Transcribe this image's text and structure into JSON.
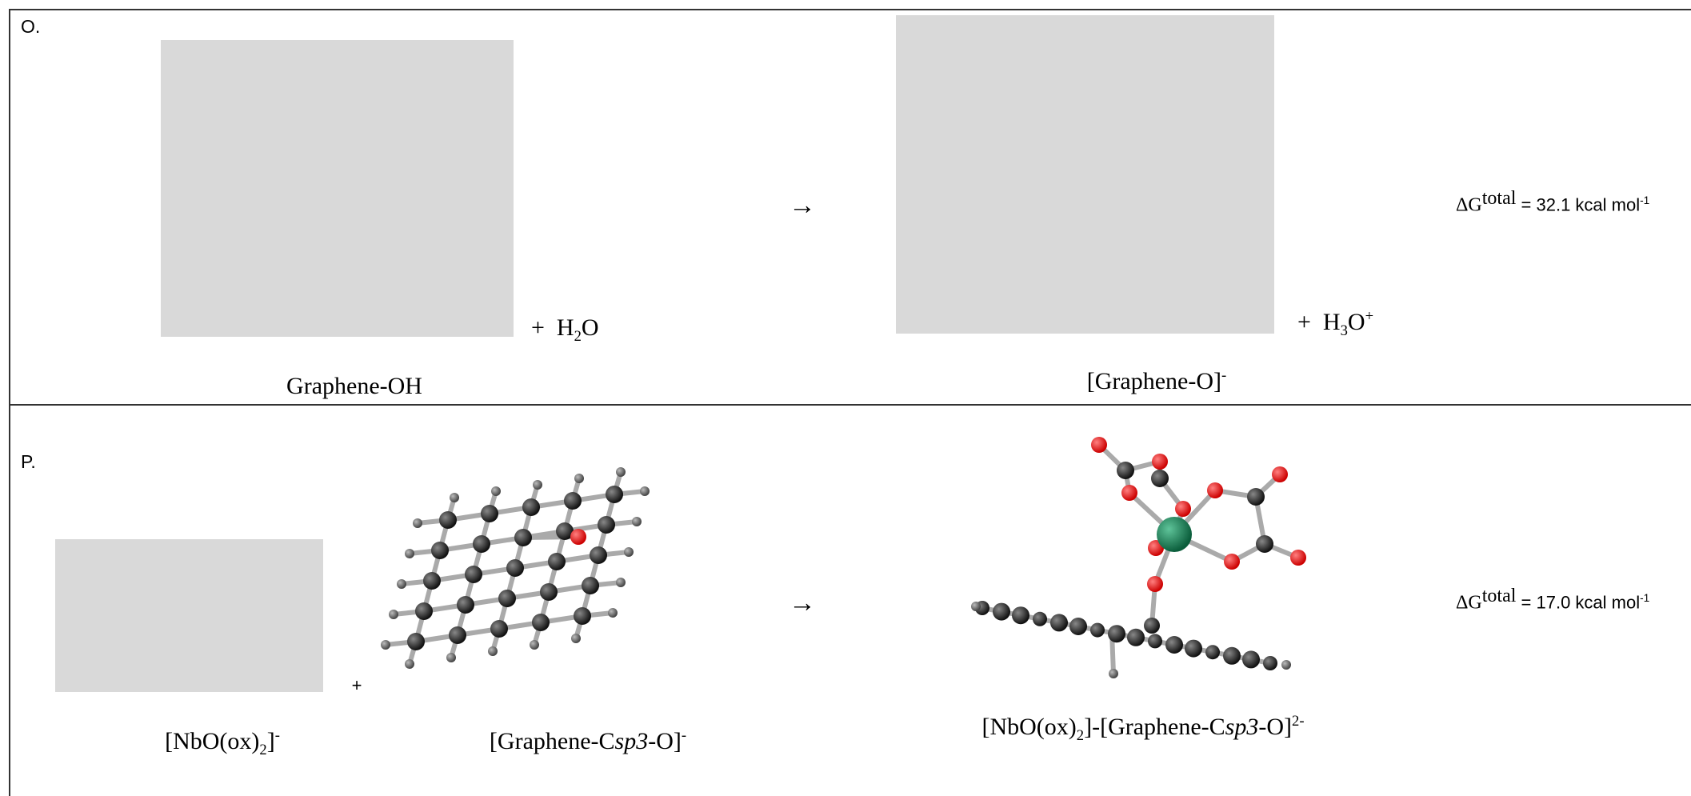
{
  "row_o": {
    "label": "O.",
    "reactant_caption": "Graphene-OH",
    "plus": "+",
    "water": {
      "left": "H",
      "sub": "2",
      "right": "O"
    },
    "arrow": "→",
    "product_caption": {
      "text": "[Graphene-O]",
      "charge": "-"
    },
    "plus_2": "+",
    "hydronium": {
      "left": "H",
      "sub": "3",
      "right": "O",
      "charge": "+"
    },
    "delta_g": {
      "symbol": "ΔG",
      "sup": "total",
      "text": " = 32.1 kcal mol",
      "exp": "-1"
    }
  },
  "row_p": {
    "label": "P.",
    "reactant_1_caption": {
      "left": "[NbO(ox)",
      "sub": "2",
      "right": "]",
      "charge": "-"
    },
    "plus": "+",
    "reactant_2_caption": {
      "left": "[Graphene-C",
      "italic": "sp3",
      "right": "-O]",
      "charge": "-"
    },
    "arrow": "→",
    "product_caption": {
      "left": "[NbO(ox)",
      "sub": "2",
      "mid": "]-[Graphene-C",
      "italic": "sp3",
      "right": "-O]",
      "charge": "2-"
    },
    "delta_g": {
      "symbol": "ΔG",
      "sup": "total",
      "text": " = 17.0 kcal mol",
      "exp": "-1"
    }
  }
}
